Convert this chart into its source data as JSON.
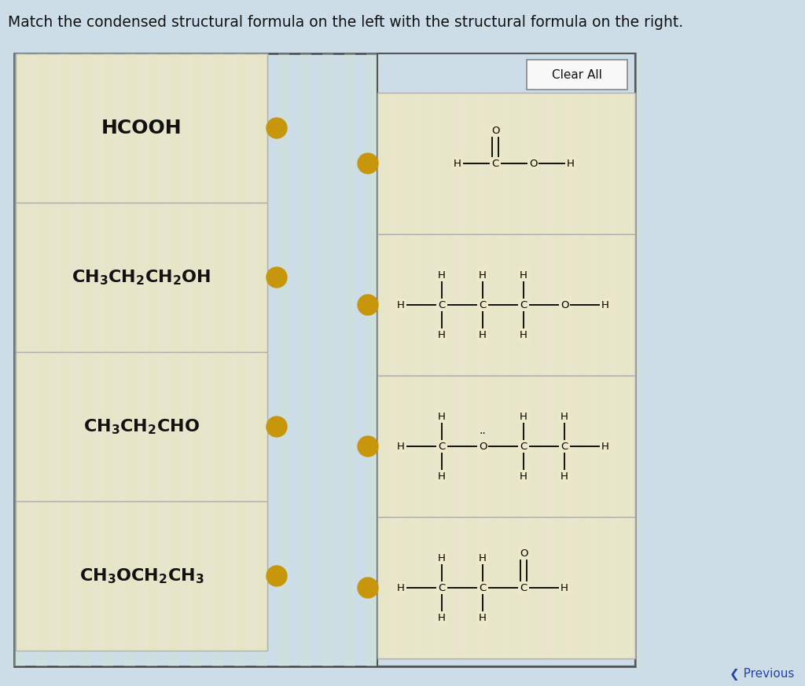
{
  "title": "Match the condensed structural formula on the left with the structural formula on the right.",
  "title_fontsize": 13.5,
  "bg_color": "#ccdde8",
  "panel_bg": "#ede8c8",
  "left_labels": [
    "HCOOH",
    "CH₃CH₂CH₂OH",
    "CH₃CH₂CHO",
    "CH₃OCH₂CH₃"
  ],
  "dot_color": "#c8960a",
  "clear_all_box": "Clear All",
  "button_bg": "#f8f8f8",
  "button_border": "#999999",
  "line_color": "#000000",
  "text_color": "#111111",
  "stripe_color1": "#dde9c0",
  "stripe_color2": "#ede8c8"
}
